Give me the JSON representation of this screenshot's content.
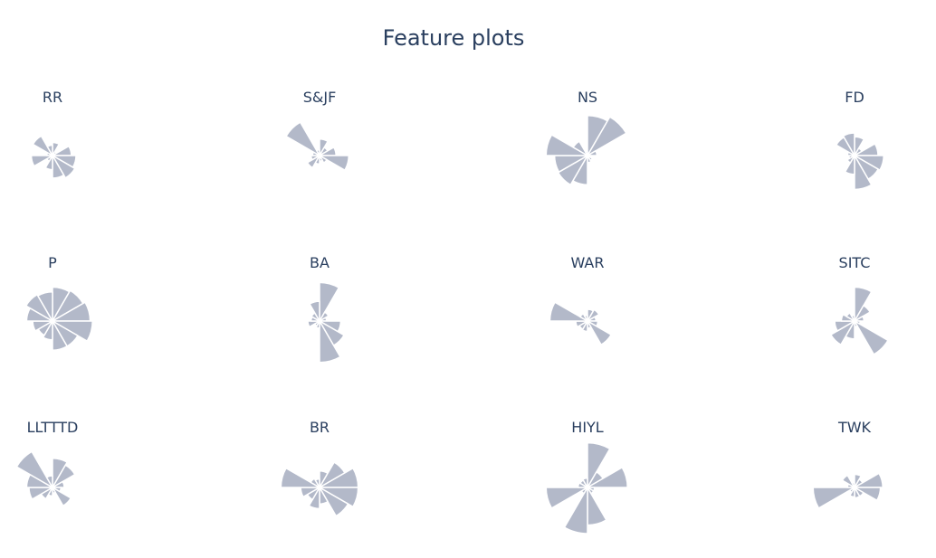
{
  "title": "Feature plots",
  "colors": {
    "wedge_fill": "#b3b9c9",
    "wedge_stroke": "#ffffff",
    "text": "#2a3f5f",
    "background": "#ffffff"
  },
  "chart_data": [
    {
      "type": "barpolar",
      "title": "RR",
      "values": [
        0.28,
        0.1,
        0.4,
        0.5,
        0.55,
        0.48,
        0.3,
        0.14,
        0.45,
        0.12,
        0.48,
        0.22
      ]
    },
    {
      "type": "barpolar",
      "title": "S&JF",
      "values": [
        0.35,
        0.2,
        0.35,
        0.62,
        0.18,
        0.12,
        0.18,
        0.3,
        0.18,
        0.15,
        0.82,
        0.12
      ]
    },
    {
      "type": "barpolar",
      "title": "NS",
      "values": [
        0.85,
        0.95,
        0.2,
        0.08,
        0.12,
        0.15,
        0.62,
        0.72,
        0.7,
        0.88,
        0.35,
        0.08
      ]
    },
    {
      "type": "barpolar",
      "title": "FD",
      "values": [
        0.4,
        0.18,
        0.5,
        0.62,
        0.58,
        0.72,
        0.4,
        0.18,
        0.12,
        0.15,
        0.45,
        0.48
      ]
    },
    {
      "type": "barpolar",
      "title": "P",
      "values": [
        0.72,
        0.75,
        0.8,
        0.85,
        0.62,
        0.62,
        0.4,
        0.35,
        0.42,
        0.55,
        0.65,
        0.62
      ]
    },
    {
      "type": "barpolar",
      "title": "BA",
      "values": [
        0.82,
        0.22,
        0.15,
        0.45,
        0.6,
        0.88,
        0.15,
        0.12,
        0.25,
        0.18,
        0.2,
        0.42
      ]
    },
    {
      "type": "barpolar",
      "title": "WAR",
      "values": [
        0.25,
        0.28,
        0.18,
        0.22,
        0.58,
        0.15,
        0.22,
        0.2,
        0.25,
        0.8,
        0.18,
        0.12
      ]
    },
    {
      "type": "barpolar",
      "title": "SITC",
      "values": [
        0.72,
        0.38,
        0.2,
        0.12,
        0.82,
        0.12,
        0.38,
        0.58,
        0.42,
        0.28,
        0.2,
        0.12
      ]
    },
    {
      "type": "barpolar",
      "title": "LLTTTD",
      "values": [
        0.62,
        0.55,
        0.25,
        0.18,
        0.45,
        0.12,
        0.18,
        0.28,
        0.5,
        0.55,
        0.88,
        0.25
      ]
    },
    {
      "type": "barpolar",
      "title": "BR",
      "values": [
        0.35,
        0.62,
        0.82,
        0.82,
        0.7,
        0.35,
        0.45,
        0.3,
        0.4,
        0.82,
        0.22,
        0.18
      ]
    },
    {
      "type": "barpolar",
      "title": "HIYL",
      "values": [
        0.95,
        0.38,
        0.85,
        0.15,
        0.15,
        0.8,
        0.98,
        0.15,
        0.88,
        0.2,
        0.18,
        0.2
      ]
    },
    {
      "type": "barpolar",
      "title": "TWK",
      "values": [
        0.28,
        0.2,
        0.6,
        0.55,
        0.22,
        0.22,
        0.2,
        0.12,
        0.88,
        0.15,
        0.3,
        0.1
      ]
    }
  ]
}
